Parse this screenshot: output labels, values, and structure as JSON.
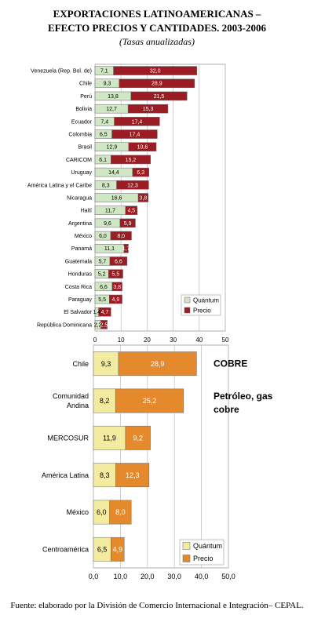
{
  "header": {
    "title_line1": "EXPORTACIONES LATINOAMERICANAS –",
    "title_line2": "EFECTO PRECIOS Y CANTIDADES. 2003-2006",
    "subtitle": "(Tasas anualizadas)"
  },
  "footer": {
    "source": "Fuente: elaborado por la División de Comercio Internacional e Integración– CEPAL."
  },
  "colors": {
    "chart1_quantum": "#cfe7c4",
    "chart1_precio": "#9b1c22",
    "chart2_quantum": "#f2eba0",
    "chart2_precio": "#e48a2c",
    "grid": "#bdbdbd"
  },
  "chart_data": [
    {
      "type": "bar",
      "orientation": "horizontal",
      "stacked": true,
      "categories": [
        "Venezuela (Rep. Bol. de)",
        "Chile",
        "Perú",
        "Bolivia",
        "Ecuador",
        "Colombia",
        "Brasil",
        "CARICOM",
        "Uruguay",
        "América Latina y el Caribe",
        "Nicaragua",
        "Haití",
        "Argentina",
        "México",
        "Panamá",
        "Guatemala",
        "Honduras",
        "Costa Rica",
        "Paraguay",
        "El Salvador",
        "República Dominicana"
      ],
      "series": [
        {
          "name": "Quántum",
          "values": [
            7.1,
            9.3,
            13.8,
            12.7,
            7.4,
            6.5,
            12.9,
            6.1,
            14.4,
            8.3,
            16.6,
            11.7,
            9.6,
            6.0,
            11.1,
            5.7,
            5.2,
            6.6,
            5.5,
            1.4,
            2.2
          ]
        },
        {
          "name": "Precio",
          "values": [
            32.0,
            28.9,
            21.5,
            15.3,
            17.4,
            17.4,
            10.6,
            15.2,
            6.3,
            12.3,
            3.8,
            4.5,
            5.9,
            8.0,
            1.7,
            6.6,
            5.5,
            3.8,
            4.9,
            4.7,
            2.5
          ]
        }
      ],
      "value_labels": {
        "quantum": [
          "7,1",
          "9,3",
          "13,8",
          "12,7",
          "7,4",
          "6,5",
          "12,9",
          "6,1",
          "14,4",
          "8,3",
          "16,6",
          "11,7",
          "9,6",
          "6,0",
          "11,1",
          "5,7",
          "5,2",
          "6,6",
          "5,5",
          "1,4",
          "2,2"
        ],
        "precio": [
          "32,0",
          "28,9",
          "21,5",
          "15,3",
          "17,4",
          "17,4",
          "10,6",
          "15,2",
          "6,3",
          "12,3",
          "3,8",
          "4,5",
          "5,9",
          "8,0",
          "1,7",
          "6,6",
          "5,5",
          "3,8",
          "4,9",
          "4,7",
          "2,5"
        ]
      },
      "xlim": [
        0,
        50
      ],
      "xticks": [
        "0",
        "10",
        "20",
        "30",
        "40",
        "50"
      ],
      "grid": true,
      "legend_placement": "bottom-right"
    },
    {
      "type": "bar",
      "orientation": "horizontal",
      "stacked": true,
      "categories": [
        "Chile",
        "Comunidad Andina",
        "MERCOSUR",
        "América Latina",
        "México",
        "Centroamérica"
      ],
      "category_lines": [
        [
          "Chile"
        ],
        [
          "Comunidad",
          "Andina"
        ],
        [
          "MERCOSUR"
        ],
        [
          "América Latina"
        ],
        [
          "México"
        ],
        [
          "Centroamérica"
        ]
      ],
      "series": [
        {
          "name": "Quántum",
          "values": [
            9.3,
            8.2,
            11.9,
            8.3,
            6.0,
            6.5
          ]
        },
        {
          "name": "Precio",
          "values": [
            28.9,
            25.2,
            9.2,
            12.3,
            8.0,
            4.9
          ]
        }
      ],
      "value_labels": {
        "quantum": [
          "9,3",
          "8,2",
          "11,9",
          "8,3",
          "6,0",
          "6,5"
        ],
        "precio": [
          "28,9",
          "25,2",
          "9,2",
          "12,3",
          "8,0",
          "4,9"
        ]
      },
      "xlim": [
        0,
        50
      ],
      "xticks": [
        "0,0",
        "10,0",
        "20,0",
        "30,0",
        "40,0",
        "50,0"
      ],
      "grid": true,
      "legend_placement": "bottom-right",
      "annotations": [
        {
          "text": "COBRE",
          "category": "Chile"
        },
        {
          "text": "Petróleo, gas",
          "category": "Comunidad Andina",
          "line": 0
        },
        {
          "text": "cobre",
          "category": "Comunidad Andina",
          "line": 1
        }
      ]
    }
  ]
}
